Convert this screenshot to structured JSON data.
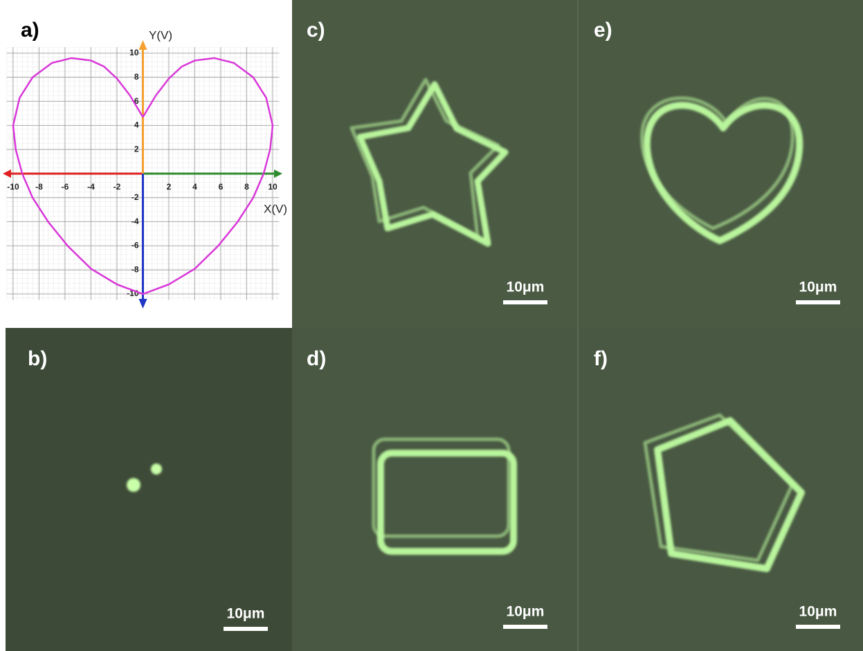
{
  "chart_data": {
    "type": "line",
    "panel_label": "a)",
    "x_label": "X(V)",
    "y_label": "Y(V)",
    "xlim": [
      -10.5,
      10.5
    ],
    "ylim": [
      -10.5,
      10.5
    ],
    "xticks": [
      -10,
      -8,
      -6,
      -4,
      -2,
      2,
      4,
      6,
      8,
      10
    ],
    "yticks": [
      10,
      8,
      6,
      4,
      2,
      -2,
      -4,
      -6,
      -8,
      -10
    ],
    "grid": true,
    "axis_colors": {
      "x_positive": "#2e8b2e",
      "x_negative": "#e02020",
      "y_positive": "#f5a030",
      "y_negative": "#1f35c8"
    },
    "series": [
      {
        "color": "#d936d9",
        "x": [
          0,
          1,
          2,
          3,
          4,
          5.5,
          7,
          8.5,
          9.5,
          10,
          9.8,
          9.3,
          8.5,
          7.3,
          5.8,
          4,
          2,
          0,
          -2,
          -4,
          -5.8,
          -7.3,
          -8.5,
          -9.3,
          -9.8,
          -10,
          -9.5,
          -8.5,
          -7,
          -5.5,
          -4,
          -3,
          -2,
          -1,
          0
        ],
        "values": [
          4.7,
          6.5,
          7.9,
          8.9,
          9.4,
          9.6,
          9.2,
          8.0,
          6.3,
          4.0,
          2,
          0,
          -2,
          -4,
          -6,
          -7.9,
          -9.2,
          -10,
          -9.2,
          -7.9,
          -6,
          -4,
          -2,
          0,
          2,
          4.0,
          6.3,
          8.0,
          9.2,
          9.6,
          9.4,
          8.9,
          7.9,
          6.5,
          4.7
        ]
      }
    ]
  },
  "panels": [
    {
      "label": "b)",
      "scale_bar": "10μm"
    },
    {
      "label": "c)",
      "scale_bar": "10μm"
    },
    {
      "label": "d)",
      "scale_bar": "10μm"
    },
    {
      "label": "e)",
      "scale_bar": "10μm"
    },
    {
      "label": "f)",
      "scale_bar": "10μm"
    }
  ]
}
